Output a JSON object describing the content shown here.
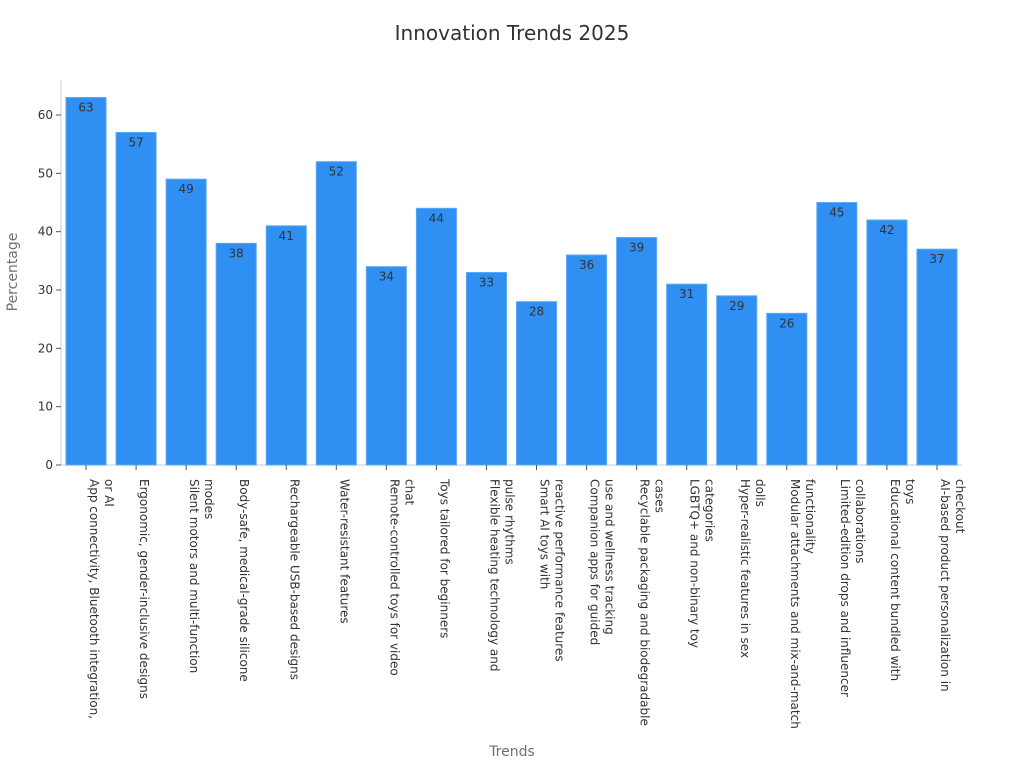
{
  "chart_data": {
    "type": "bar",
    "title": "Innovation Trends 2025",
    "xlabel": "Trends",
    "ylabel": "Percentage",
    "ylim": [
      0,
      66
    ],
    "yticks": [
      0,
      10,
      20,
      30,
      40,
      50,
      60
    ],
    "grid": false,
    "bar_color": "#2f8ff2",
    "categories": [
      [
        "App connectivity, Bluetooth integration,",
        "or AI"
      ],
      [
        "Ergonomic, gender-inclusive designs"
      ],
      [
        "Silent motors and multi-function",
        "modes"
      ],
      [
        "Body-safe, medical-grade silicone"
      ],
      [
        "Rechargeable USB-based designs"
      ],
      [
        "Water-resistant features"
      ],
      [
        "Remote-controlled toys for video",
        "chat"
      ],
      [
        "Toys tailored for beginners"
      ],
      [
        "Flexible heating technology and",
        "pulse rhythms"
      ],
      [
        "Smart AI toys with",
        "reactive performance features"
      ],
      [
        "Companion apps for guided",
        "use and wellness tracking"
      ],
      [
        "Recyclable packaging and biodegradable",
        "cases"
      ],
      [
        "LGBTQ+ and non-binary toy",
        "categories"
      ],
      [
        "Hyper-realistic features in sex",
        "dolls"
      ],
      [
        "Modular attachments and mix-and-match",
        "functionality"
      ],
      [
        "Limited-edition drops and influencer",
        "collaborations"
      ],
      [
        "Educational content bundled with",
        "toys"
      ],
      [
        "AI-based product personalization in",
        "checkout"
      ]
    ],
    "values": [
      63,
      57,
      49,
      38,
      41,
      52,
      34,
      44,
      33,
      28,
      36,
      39,
      31,
      29,
      26,
      45,
      42,
      37
    ]
  }
}
